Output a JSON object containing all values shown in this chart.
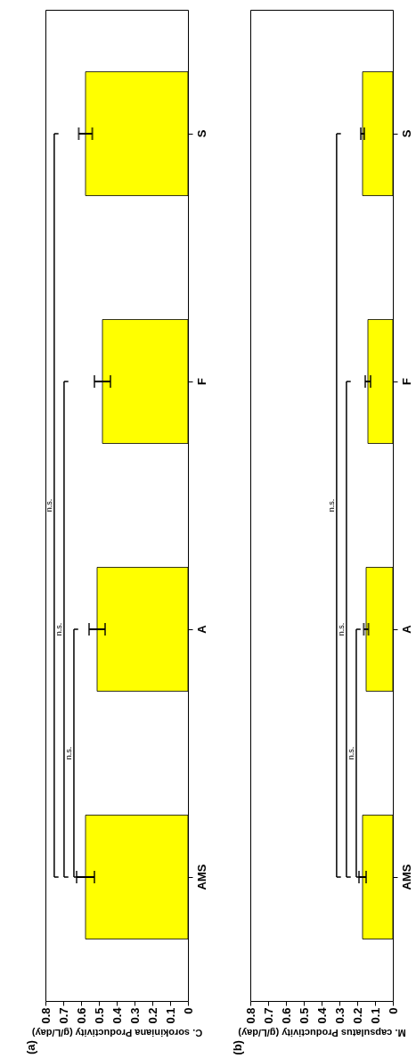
{
  "chart_data": [
    {
      "type": "bar",
      "orientation": "horizontal",
      "title": "(a)",
      "xlabel": "C. sorokiniana Productivity (g/L/day)",
      "categories": [
        "S",
        "F",
        "A",
        "AMS"
      ],
      "values": [
        0.575,
        0.48,
        0.51,
        0.575
      ],
      "errors": [
        0.038,
        0.045,
        0.045,
        0.05
      ],
      "color": "#ffff00",
      "xlim": [
        0.8,
        0
      ],
      "xticks": [
        0,
        0.1,
        0.2,
        0.3,
        0.4,
        0.5,
        0.6,
        0.7,
        0.8
      ],
      "annotations": [
        "n.s.",
        "n.s.",
        "n.s."
      ]
    },
    {
      "type": "bar",
      "orientation": "horizontal",
      "title": "(b)",
      "xlabel": "M. capsulatus Productivity (g/L/day)",
      "categories": [
        "S",
        "F",
        "A",
        "AMS"
      ],
      "values": [
        0.17,
        0.14,
        0.15,
        0.17
      ],
      "errors": [
        0.01,
        0.015,
        0.013,
        0.02
      ],
      "color": "#ffff00",
      "xlim": [
        0.8,
        0
      ],
      "xticks": [
        0,
        0.1,
        0.2,
        0.3,
        0.4,
        0.5,
        0.6,
        0.7,
        0.8
      ],
      "annotations": [
        "n.s.",
        "n.s.",
        "n.s."
      ]
    }
  ]
}
